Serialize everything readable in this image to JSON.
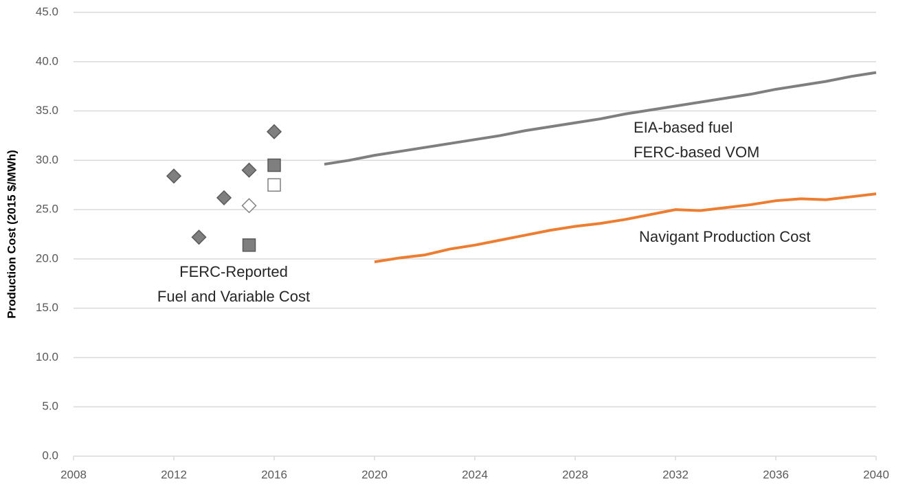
{
  "chart_data": {
    "type": "line",
    "y_label": "Production Cost (2015 $/MWh)",
    "xlim": [
      2008,
      2040
    ],
    "xticks": [
      2008,
      2012,
      2016,
      2020,
      2024,
      2028,
      2032,
      2036,
      2040
    ],
    "ylim": [
      0,
      45
    ],
    "yticks": [
      {
        "value": 0,
        "label": "0.0"
      },
      {
        "value": 5,
        "label": "5.0"
      },
      {
        "value": 10,
        "label": "10.0"
      },
      {
        "value": 15,
        "label": "15.0"
      },
      {
        "value": 20,
        "label": "20.0"
      },
      {
        "value": 25,
        "label": "25.0"
      },
      {
        "value": 30,
        "label": "30.0"
      },
      {
        "value": 35,
        "label": "35.0"
      },
      {
        "value": 40,
        "label": "40.0"
      },
      {
        "value": 45,
        "label": "45.0"
      }
    ],
    "grid": true,
    "series": [
      {
        "type": "scatter",
        "marker": "diamond",
        "color": "#7f7f7f",
        "filled": true,
        "x": [
          2012,
          2013,
          2014,
          2015,
          2016
        ],
        "values": [
          28.4,
          22.2,
          26.2,
          29.0,
          32.9
        ]
      },
      {
        "type": "scatter",
        "marker": "diamond",
        "color": "#7f7f7f",
        "filled": false,
        "x": [
          2015
        ],
        "values": [
          25.4
        ]
      },
      {
        "type": "scatter",
        "marker": "square",
        "color": "#7f7f7f",
        "filled": true,
        "x": [
          2015,
          2016
        ],
        "values": [
          21.4,
          29.5
        ]
      },
      {
        "type": "scatter",
        "marker": "square",
        "color": "#7f7f7f",
        "filled": false,
        "x": [
          2016
        ],
        "values": [
          27.5
        ]
      },
      {
        "type": "line",
        "color": "#7f7f7f",
        "x": [
          2018,
          2019,
          2020,
          2021,
          2022,
          2023,
          2024,
          2025,
          2026,
          2027,
          2028,
          2029,
          2030,
          2031,
          2032,
          2033,
          2034,
          2035,
          2036,
          2037,
          2038,
          2039,
          2040
        ],
        "values": [
          29.6,
          30.0,
          30.5,
          30.9,
          31.3,
          31.7,
          32.1,
          32.5,
          33.0,
          33.4,
          33.8,
          34.2,
          34.7,
          35.1,
          35.5,
          35.9,
          36.3,
          36.7,
          37.2,
          37.6,
          38.0,
          38.5,
          38.9
        ]
      },
      {
        "type": "line",
        "color": "#ed7d31",
        "x": [
          2020,
          2021,
          2022,
          2023,
          2024,
          2025,
          2026,
          2027,
          2028,
          2029,
          2030,
          2031,
          2032,
          2033,
          2034,
          2035,
          2036,
          2037,
          2038,
          2039,
          2040
        ],
        "values": [
          19.7,
          20.1,
          20.4,
          21.0,
          21.4,
          21.9,
          22.4,
          22.9,
          23.3,
          23.6,
          24.0,
          24.5,
          25.0,
          24.9,
          25.2,
          25.5,
          25.9,
          26.1,
          26.0,
          26.3,
          26.6
        ]
      }
    ],
    "annotations": [
      [
        "FERC-Reported",
        "Fuel and Variable Cost"
      ],
      [
        "EIA-based fuel",
        "FERC-based VOM"
      ],
      [
        "Navigant Production Cost"
      ]
    ]
  }
}
